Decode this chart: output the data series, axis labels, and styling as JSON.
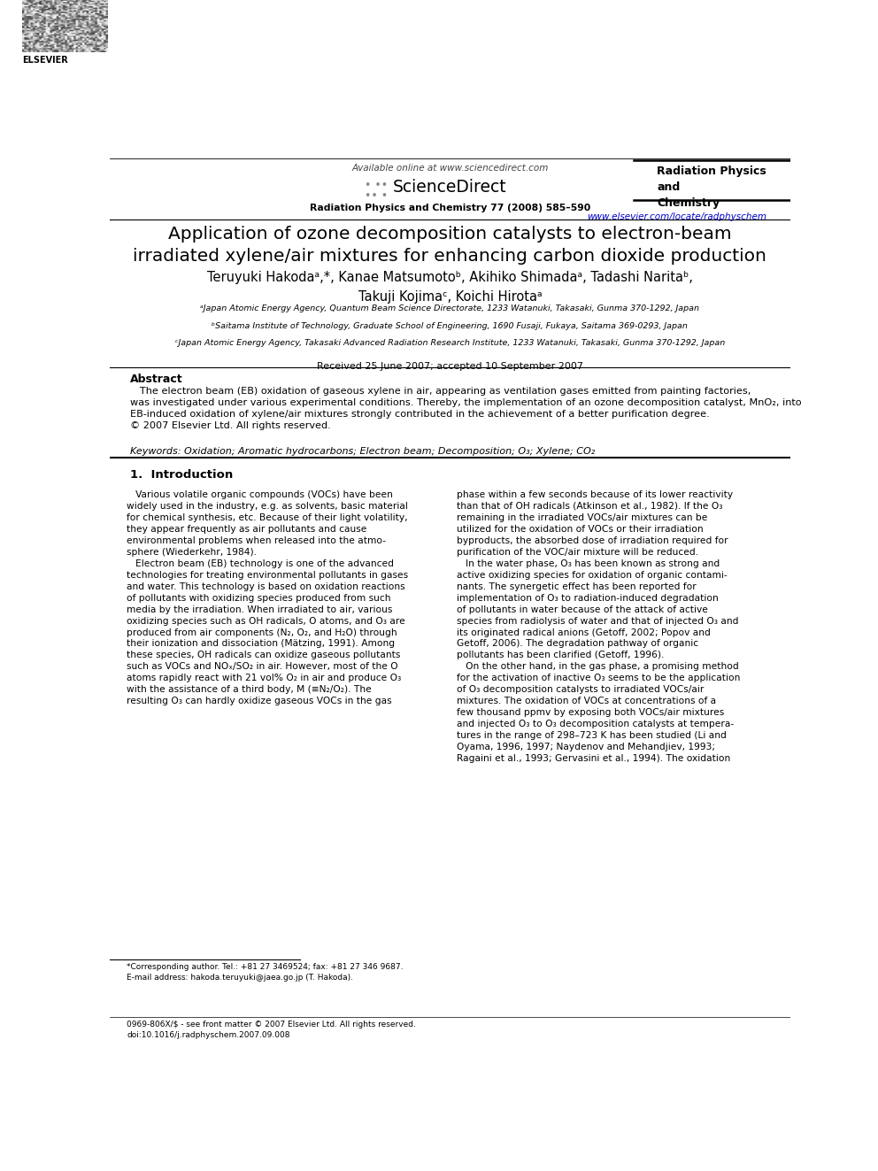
{
  "bg_color": "#ffffff",
  "header": {
    "available_online": "Available online at www.sciencedirect.com",
    "journal_name_top": "Radiation Physics\nand\nChemistry",
    "journal_ref": "Radiation Physics and Chemistry 77 (2008) 585–590",
    "url": "www.elsevier.com/locate/radphyschem"
  },
  "title": "Application of ozone decomposition catalysts to electron-beam\nirradiated xylene/air mixtures for enhancing carbon dioxide production",
  "authors": "Teruyuki Hakodaᵃ,*, Kanae Matsumotoᵇ, Akihiko Shimadaᵃ, Tadashi Naritaᵇ,\nTakuji Kojimaᶜ, Koichi Hirotaᵃ",
  "affiliations": [
    "ᵃJapan Atomic Energy Agency, Quantum Beam Science Directorate, 1233 Watanuki, Takasaki, Gunma 370-1292, Japan",
    "ᵇSaitama Institute of Technology, Graduate School of Engineering, 1690 Fusaji, Fukaya, Saitama 369-0293, Japan",
    "ᶜJapan Atomic Energy Agency, Takasaki Advanced Radiation Research Institute, 1233 Watanuki, Takasaki, Gunma 370-1292, Japan"
  ],
  "received": "Received 25 June 2007; accepted 10 September 2007",
  "abstract_title": "Abstract",
  "abstract_text": "   The electron beam (EB) oxidation of gaseous xylene in air, appearing as ventilation gases emitted from painting factories,\nwas investigated under various experimental conditions. Thereby, the implementation of an ozone decomposition catalyst, MnO₂, into\nEB-induced oxidation of xylene/air mixtures strongly contributed in the achievement of a better purification degree.\n© 2007 Elsevier Ltd. All rights reserved.",
  "keywords": "Keywords: Oxidation; Aromatic hydrocarbons; Electron beam; Decomposition; O₃; Xylene; CO₂",
  "section1_title": "1.  Introduction",
  "intro_left": "   Various volatile organic compounds (VOCs) have been\nwidely used in the industry, e.g. as solvents, basic material\nfor chemical synthesis, etc. Because of their light volatility,\nthey appear frequently as air pollutants and cause\nenvironmental problems when released into the atmo-\nsphere (Wiederkehr, 1984).\n   Electron beam (EB) technology is one of the advanced\ntechnologies for treating environmental pollutants in gases\nand water. This technology is based on oxidation reactions\nof pollutants with oxidizing species produced from such\nmedia by the irradiation. When irradiated to air, various\noxidizing species such as OH radicals, O atoms, and O₃ are\nproduced from air components (N₂, O₂, and H₂O) through\ntheir ionization and dissociation (Mätzing, 1991). Among\nthese species, OH radicals can oxidize gaseous pollutants\nsuch as VOCs and NOₓ/SO₂ in air. However, most of the O\natoms rapidly react with 21 vol% O₂ in air and produce O₃\nwith the assistance of a third body, M (≡N₂/O₂). The\nresulting O₃ can hardly oxidize gaseous VOCs in the gas",
  "intro_right": "phase within a few seconds because of its lower reactivity\nthan that of OH radicals (Atkinson et al., 1982). If the O₃\nremaining in the irradiated VOCs/air mixtures can be\nutilized for the oxidation of VOCs or their irradiation\nbyproducts, the absorbed dose of irradiation required for\npurification of the VOC/air mixture will be reduced.\n   In the water phase, O₃ has been known as strong and\nactive oxidizing species for oxidation of organic contami-\nnants. The synergetic effect has been reported for\nimplementation of O₃ to radiation-induced degradation\nof pollutants in water because of the attack of active\nspecies from radiolysis of water and that of injected O₃ and\nits originated radical anions (Getoff, 2002; Popov and\nGetoff, 2006). The degradation pathway of organic\npollutants has been clarified (Getoff, 1996).\n   On the other hand, in the gas phase, a promising method\nfor the activation of inactive O₃ seems to be the application\nof O₃ decomposition catalysts to irradiated VOCs/air\nmixtures. The oxidation of VOCs at concentrations of a\nfew thousand ppmv by exposing both VOCs/air mixtures\nand injected O₃ to O₃ decomposition catalysts at tempera-\ntures in the range of 298–723 K has been studied (Li and\nOyama, 1996, 1997; Naydenov and Mehandjiev, 1993;\nRagaini et al., 1993; Gervasini et al., 1994). The oxidation",
  "footnote_left": "*Corresponding author. Tel.: +81 27 3469524; fax: +81 27 346 9687.\nE-mail address: hakoda.teruyuki@jaea.go.jp (T. Hakoda).",
  "footnote_bottom": "0969-806X/$ - see front matter © 2007 Elsevier Ltd. All rights reserved.\ndoi:10.1016/j.radphyschem.2007.09.008",
  "link_color": "#0000cc",
  "text_color": "#000000"
}
